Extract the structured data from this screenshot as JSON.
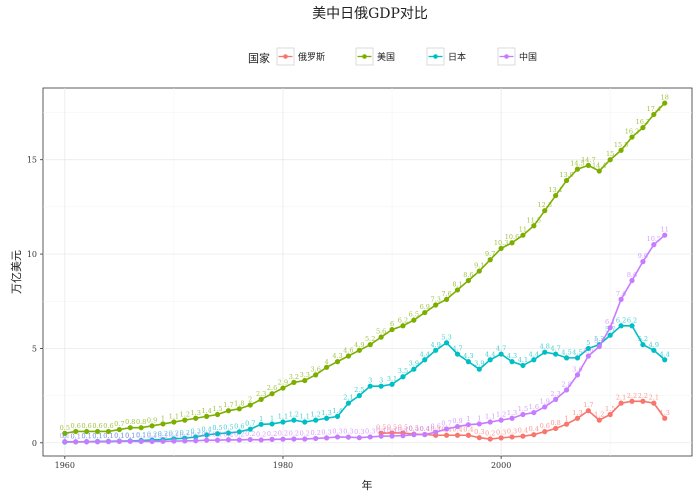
{
  "chart_data": {
    "type": "line",
    "title": "美中日俄GDP对比",
    "xlabel": "年",
    "ylabel": "万亿美元",
    "xlim": [
      1958,
      2017.5
    ],
    "ylim": [
      -0.7,
      18.8
    ],
    "x_ticks": [
      1960,
      1980,
      2000
    ],
    "y_ticks": [
      0,
      5,
      10,
      15
    ],
    "grid": true,
    "legend": {
      "title": "国家",
      "position": "top"
    },
    "x": [
      1960,
      1961,
      1962,
      1963,
      1964,
      1965,
      1966,
      1967,
      1968,
      1969,
      1970,
      1971,
      1972,
      1973,
      1974,
      1975,
      1976,
      1977,
      1978,
      1979,
      1980,
      1981,
      1982,
      1983,
      1984,
      1985,
      1986,
      1987,
      1988,
      1989,
      1990,
      1991,
      1992,
      1993,
      1994,
      1995,
      1996,
      1997,
      1998,
      1999,
      2000,
      2001,
      2002,
      2003,
      2004,
      2005,
      2006,
      2007,
      2008,
      2009,
      2010,
      2011,
      2012,
      2013,
      2014,
      2015
    ],
    "series": [
      {
        "name": "俄罗斯",
        "color": "#F8766D",
        "x": [
          1989,
          1990,
          1991,
          1992,
          1993,
          1994,
          1995,
          1996,
          1997,
          1998,
          1999,
          2000,
          2001,
          2002,
          2003,
          2004,
          2005,
          2006,
          2007,
          2008,
          2009,
          2010,
          2011,
          2012,
          2013,
          2014,
          2015
        ],
        "values": [
          0.51,
          0.52,
          0.52,
          0.46,
          0.44,
          0.4,
          0.4,
          0.4,
          0.4,
          0.27,
          0.2,
          0.26,
          0.31,
          0.35,
          0.43,
          0.59,
          0.76,
          0.99,
          1.3,
          1.7,
          1.2,
          1.5,
          2.1,
          2.2,
          2.2,
          2.1,
          1.3
        ]
      },
      {
        "name": "美国",
        "color": "#7CAE00",
        "x": [
          1960,
          1961,
          1962,
          1963,
          1964,
          1965,
          1966,
          1967,
          1968,
          1969,
          1970,
          1971,
          1972,
          1973,
          1974,
          1975,
          1976,
          1977,
          1978,
          1979,
          1980,
          1981,
          1982,
          1983,
          1984,
          1985,
          1986,
          1987,
          1988,
          1989,
          1990,
          1991,
          1992,
          1993,
          1994,
          1995,
          1996,
          1997,
          1998,
          1999,
          2000,
          2001,
          2002,
          2003,
          2004,
          2005,
          2006,
          2007,
          2008,
          2009,
          2010,
          2011,
          2012,
          2013,
          2014,
          2015
        ],
        "values": [
          0.5,
          0.6,
          0.6,
          0.6,
          0.6,
          0.7,
          0.8,
          0.8,
          0.9,
          1.0,
          1.1,
          1.2,
          1.3,
          1.4,
          1.5,
          1.7,
          1.8,
          2.0,
          2.3,
          2.6,
          2.9,
          3.2,
          3.3,
          3.6,
          4.0,
          4.3,
          4.6,
          4.9,
          5.2,
          5.6,
          6.0,
          6.2,
          6.5,
          6.9,
          7.3,
          7.6,
          8.1,
          8.6,
          9.1,
          9.7,
          10.3,
          10.6,
          11.0,
          11.5,
          12.3,
          13.1,
          13.9,
          14.5,
          14.7,
          14.4,
          15.0,
          15.5,
          16.2,
          16.7,
          17.4,
          18.0
        ]
      },
      {
        "name": "日本",
        "color": "#00BFC4",
        "x": [
          1960,
          1961,
          1962,
          1963,
          1964,
          1965,
          1966,
          1967,
          1968,
          1969,
          1970,
          1971,
          1972,
          1973,
          1974,
          1975,
          1976,
          1977,
          1978,
          1979,
          1980,
          1981,
          1982,
          1983,
          1984,
          1985,
          1986,
          1987,
          1988,
          1989,
          1990,
          1991,
          1992,
          1993,
          1994,
          1995,
          1996,
          1997,
          1998,
          1999,
          2000,
          2001,
          2002,
          2003,
          2004,
          2005,
          2006,
          2007,
          2008,
          2009,
          2010,
          2011,
          2012,
          2013,
          2014,
          2015
        ],
        "values": [
          0.04,
          0.05,
          0.06,
          0.07,
          0.08,
          0.09,
          0.1,
          0.12,
          0.15,
          0.17,
          0.21,
          0.24,
          0.31,
          0.42,
          0.48,
          0.52,
          0.58,
          0.72,
          0.98,
          1.0,
          1.1,
          1.2,
          1.1,
          1.2,
          1.3,
          1.4,
          2.1,
          2.5,
          3.0,
          3.0,
          3.1,
          3.5,
          3.9,
          4.4,
          4.9,
          5.3,
          4.7,
          4.3,
          3.9,
          4.4,
          4.7,
          4.3,
          4.1,
          4.4,
          4.8,
          4.7,
          4.5,
          4.5,
          5.0,
          5.2,
          5.7,
          6.2,
          6.2,
          5.2,
          4.9,
          4.4
        ]
      },
      {
        "name": "中国",
        "color": "#C77CFF",
        "x": [
          1960,
          1961,
          1962,
          1963,
          1964,
          1965,
          1966,
          1967,
          1968,
          1969,
          1970,
          1971,
          1972,
          1973,
          1974,
          1975,
          1976,
          1977,
          1978,
          1979,
          1980,
          1981,
          1982,
          1983,
          1984,
          1985,
          1986,
          1987,
          1988,
          1989,
          1990,
          1991,
          1992,
          1993,
          1994,
          1995,
          1996,
          1997,
          1998,
          1999,
          2000,
          2001,
          2002,
          2003,
          2004,
          2005,
          2006,
          2007,
          2008,
          2009,
          2010,
          2011,
          2012,
          2013,
          2014,
          2015
        ],
        "values": [
          0.06,
          0.05,
          0.05,
          0.05,
          0.06,
          0.07,
          0.08,
          0.07,
          0.07,
          0.08,
          0.09,
          0.1,
          0.11,
          0.14,
          0.14,
          0.16,
          0.15,
          0.17,
          0.15,
          0.18,
          0.19,
          0.2,
          0.2,
          0.23,
          0.26,
          0.31,
          0.3,
          0.27,
          0.31,
          0.35,
          0.36,
          0.38,
          0.43,
          0.44,
          0.56,
          0.73,
          0.86,
          0.96,
          1.0,
          1.1,
          1.2,
          1.3,
          1.5,
          1.6,
          1.9,
          2.3,
          2.8,
          3.6,
          4.6,
          5.1,
          6.1,
          7.6,
          8.6,
          9.6,
          10.5,
          11.0
        ]
      }
    ]
  }
}
